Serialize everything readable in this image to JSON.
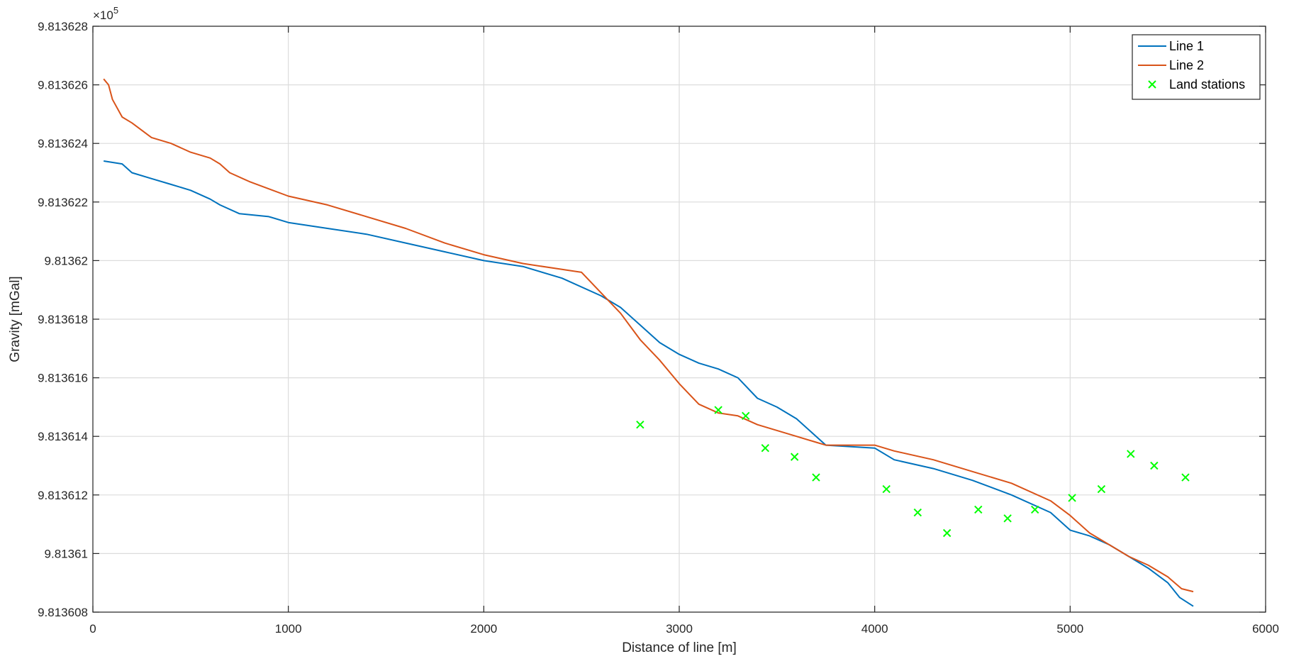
{
  "chart_data": {
    "type": "line",
    "xlabel": "Distance of line [m]",
    "ylabel": "Gravity [mGal]",
    "exponent_label": "×10",
    "exponent_power": "5",
    "xlim": [
      0,
      6000
    ],
    "ylim": [
      9.813608,
      9.813628
    ],
    "xticks": [
      0,
      1000,
      2000,
      3000,
      4000,
      5000,
      6000
    ],
    "xtick_labels": [
      "0",
      "1000",
      "2000",
      "3000",
      "4000",
      "5000",
      "6000"
    ],
    "yticks": [
      9.813608,
      9.81361,
      9.813612,
      9.813614,
      9.813616,
      9.813618,
      9.81362,
      9.813622,
      9.813624,
      9.813626,
      9.813628
    ],
    "ytick_labels": [
      "9.813608",
      "9.81361",
      "9.813612",
      "9.813614",
      "9.813616",
      "9.813618",
      "9.81362",
      "9.813622",
      "9.813624",
      "9.813626",
      "9.813628"
    ],
    "grid": true,
    "legend_position": "top-right",
    "series": [
      {
        "name": "Line 1",
        "color": "#0072BD",
        "kind": "line",
        "points": [
          [
            55,
            9.8136234
          ],
          [
            150,
            9.8136233
          ],
          [
            200,
            9.813623
          ],
          [
            300,
            9.8136228
          ],
          [
            400,
            9.8136226
          ],
          [
            500,
            9.8136224
          ],
          [
            600,
            9.8136221
          ],
          [
            650,
            9.8136219
          ],
          [
            750,
            9.8136216
          ],
          [
            900,
            9.8136215
          ],
          [
            1000,
            9.8136213
          ],
          [
            1200,
            9.8136211
          ],
          [
            1400,
            9.8136209
          ],
          [
            1600,
            9.8136206
          ],
          [
            1800,
            9.8136203
          ],
          [
            2000,
            9.81362
          ],
          [
            2200,
            9.8136198
          ],
          [
            2400,
            9.8136194
          ],
          [
            2600,
            9.8136188
          ],
          [
            2700,
            9.8136184
          ],
          [
            2800,
            9.8136178
          ],
          [
            2900,
            9.8136172
          ],
          [
            3000,
            9.8136168
          ],
          [
            3100,
            9.8136165
          ],
          [
            3200,
            9.8136163
          ],
          [
            3300,
            9.813616
          ],
          [
            3400,
            9.8136153
          ],
          [
            3500,
            9.813615
          ],
          [
            3600,
            9.8136146
          ],
          [
            3700,
            9.813614
          ],
          [
            3750,
            9.8136137
          ],
          [
            4000,
            9.8136136
          ],
          [
            4100,
            9.8136132
          ],
          [
            4300,
            9.8136129
          ],
          [
            4500,
            9.8136125
          ],
          [
            4700,
            9.813612
          ],
          [
            4900,
            9.8136114
          ],
          [
            5000,
            9.8136108
          ],
          [
            5100,
            9.8136106
          ],
          [
            5200,
            9.8136103
          ],
          [
            5300,
            9.8136099
          ],
          [
            5400,
            9.8136095
          ],
          [
            5500,
            9.813609
          ],
          [
            5560,
            9.8136085
          ],
          [
            5630,
            9.8136082
          ]
        ]
      },
      {
        "name": "Line 2",
        "color": "#D95319",
        "kind": "line",
        "points": [
          [
            55,
            9.8136262
          ],
          [
            80,
            9.813626
          ],
          [
            100,
            9.8136255
          ],
          [
            150,
            9.8136249
          ],
          [
            200,
            9.8136247
          ],
          [
            300,
            9.8136242
          ],
          [
            400,
            9.813624
          ],
          [
            500,
            9.8136237
          ],
          [
            600,
            9.8136235
          ],
          [
            650,
            9.8136233
          ],
          [
            700,
            9.813623
          ],
          [
            800,
            9.8136227
          ],
          [
            1000,
            9.8136222
          ],
          [
            1200,
            9.8136219
          ],
          [
            1400,
            9.8136215
          ],
          [
            1600,
            9.8136211
          ],
          [
            1800,
            9.8136206
          ],
          [
            2000,
            9.8136202
          ],
          [
            2200,
            9.8136199
          ],
          [
            2400,
            9.8136197
          ],
          [
            2500,
            9.8136196
          ],
          [
            2600,
            9.8136189
          ],
          [
            2700,
            9.8136182
          ],
          [
            2800,
            9.8136173
          ],
          [
            2900,
            9.8136166
          ],
          [
            3000,
            9.8136158
          ],
          [
            3100,
            9.8136151
          ],
          [
            3200,
            9.8136148
          ],
          [
            3300,
            9.8136147
          ],
          [
            3400,
            9.8136144
          ],
          [
            3600,
            9.813614
          ],
          [
            3700,
            9.8136138
          ],
          [
            3750,
            9.8136137
          ],
          [
            4000,
            9.8136137
          ],
          [
            4100,
            9.8136135
          ],
          [
            4300,
            9.8136132
          ],
          [
            4500,
            9.8136128
          ],
          [
            4700,
            9.8136124
          ],
          [
            4900,
            9.8136118
          ],
          [
            5000,
            9.8136113
          ],
          [
            5100,
            9.8136107
          ],
          [
            5200,
            9.8136103
          ],
          [
            5300,
            9.8136099
          ],
          [
            5400,
            9.8136096
          ],
          [
            5500,
            9.8136092
          ],
          [
            5570,
            9.8136088
          ],
          [
            5630,
            9.8136087
          ]
        ]
      },
      {
        "name": "Land stations",
        "color": "#00FF00",
        "kind": "scatter",
        "points": [
          [
            2800,
            9.8136144
          ],
          [
            3200,
            9.8136149
          ],
          [
            3340,
            9.8136147
          ],
          [
            3440,
            9.8136136
          ],
          [
            3590,
            9.8136133
          ],
          [
            3700,
            9.8136126
          ],
          [
            4060,
            9.8136122
          ],
          [
            4220,
            9.8136114
          ],
          [
            4370,
            9.8136107
          ],
          [
            4530,
            9.8136115
          ],
          [
            4680,
            9.8136112
          ],
          [
            4820,
            9.8136115
          ],
          [
            5010,
            9.8136119
          ],
          [
            5160,
            9.8136122
          ],
          [
            5310,
            9.8136134
          ],
          [
            5430,
            9.813613
          ],
          [
            5590,
            9.8136126
          ]
        ]
      }
    ]
  }
}
